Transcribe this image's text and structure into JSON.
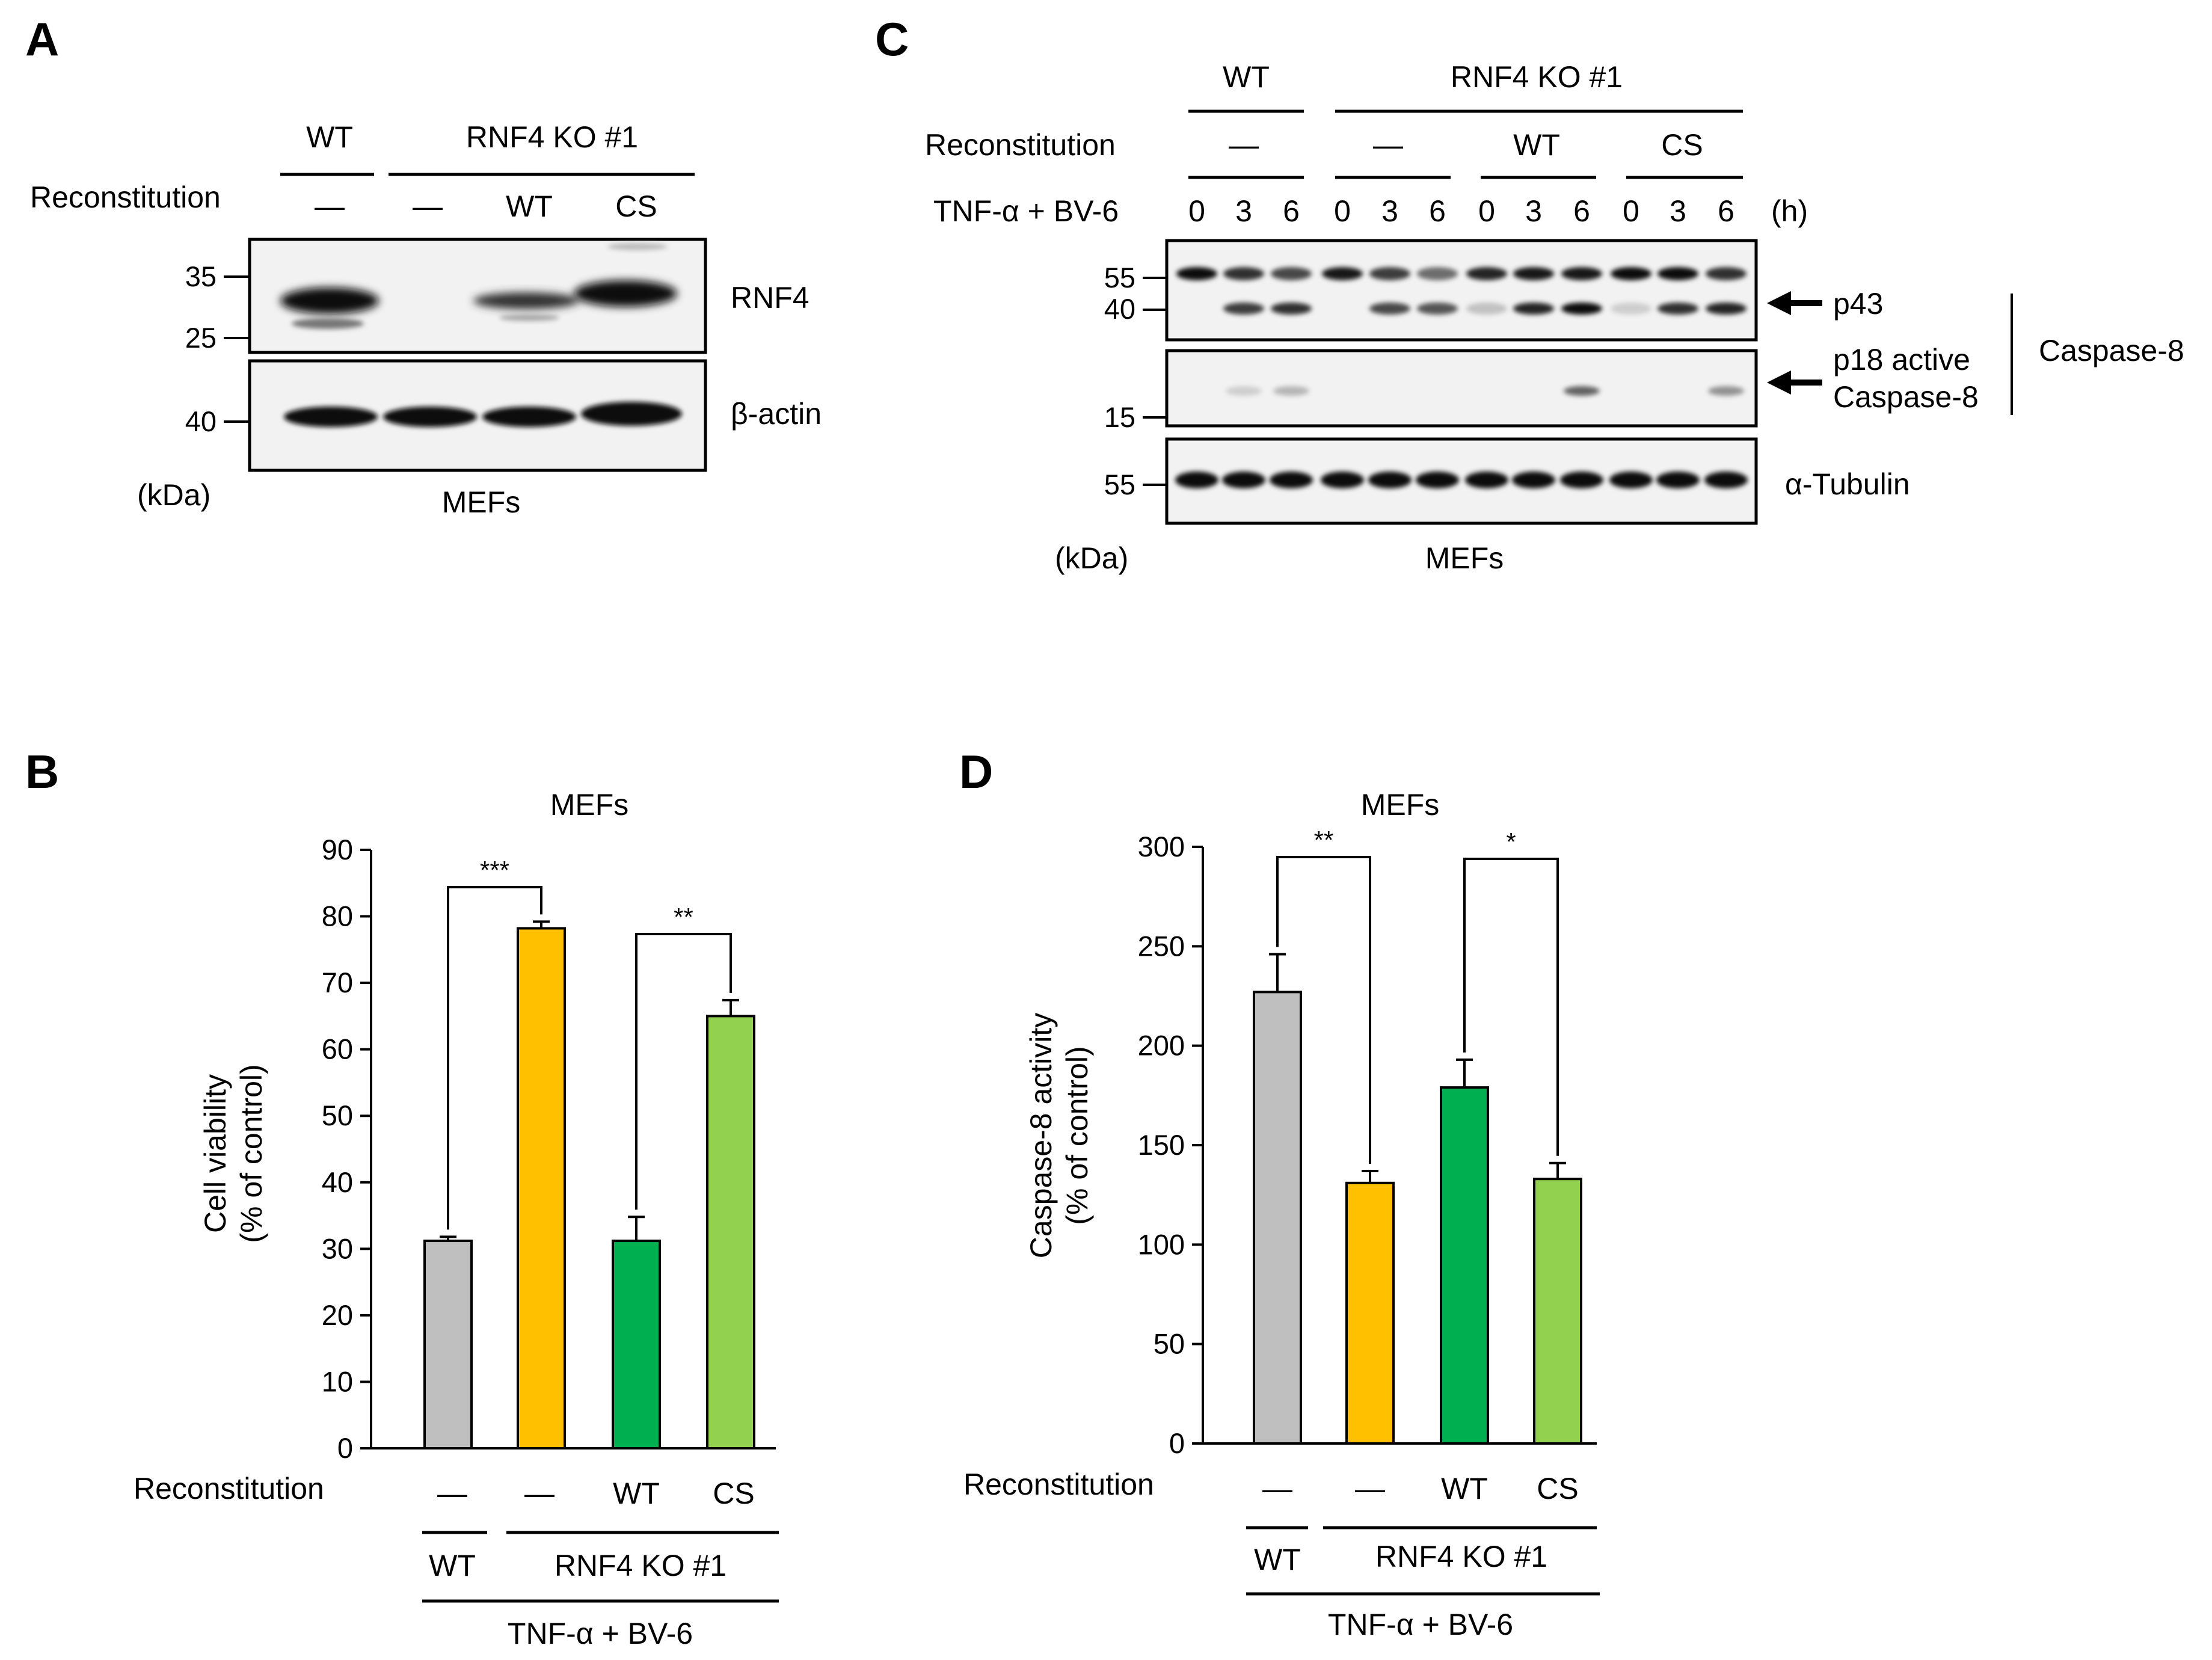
{
  "panels": {
    "A": {
      "letter": "A",
      "header_wt": "WT",
      "header_ko": "RNF4 KO #1",
      "reconstitution_label": "Reconstitution",
      "lanes": [
        "—",
        "—",
        "WT",
        "CS"
      ],
      "markers_top": [
        "35",
        "25"
      ],
      "markers_bottom": [
        "40"
      ],
      "protein_top": "RNF4",
      "protein_bottom": "β-actin",
      "kda": "(kDa)",
      "cell": "MEFs"
    },
    "C": {
      "letter": "C",
      "header_wt": "WT",
      "header_ko": "RNF4 KO #1",
      "reconstitution_label": "Reconstitution",
      "groups": [
        "—",
        "—",
        "WT",
        "CS"
      ],
      "treatment_label": "TNF-α + BV-6",
      "timepoints": [
        "0",
        "3",
        "6",
        "0",
        "3",
        "6",
        "0",
        "3",
        "6",
        "0",
        "3",
        "6"
      ],
      "time_unit": "(h)",
      "markers_top": [
        "55",
        "40"
      ],
      "markers_mid": [
        "15"
      ],
      "markers_bottom": [
        "55"
      ],
      "p43": "p43",
      "p18_line1": "p18 active",
      "p18_line2": "Caspase-8",
      "caspase_bracket": "Caspase-8",
      "tubulin": "α-Tubulin",
      "kda": "(kDa)",
      "cell": "MEFs"
    },
    "B": {
      "letter": "B",
      "reconstitution_label": "Reconstitution",
      "lanes": [
        "—",
        "—",
        "WT",
        "CS"
      ],
      "group_wt": "WT",
      "group_ko": "RNF4 KO #1",
      "treatment": "TNF-α + BV-6",
      "sig1": "***",
      "sig2": "**"
    },
    "D": {
      "letter": "D",
      "reconstitution_label": "Reconstitution",
      "lanes": [
        "—",
        "—",
        "WT",
        "CS"
      ],
      "group_wt": "WT",
      "group_ko": "RNF4 KO #1",
      "treatment": "TNF-α + BV-6",
      "sig1": "**",
      "sig2": "*"
    }
  },
  "colors": {
    "gray": "#bfbfbf",
    "orange": "#ffc000",
    "green": "#00b050",
    "light_green": "#92d050"
  },
  "chart_data": [
    {
      "id": "B",
      "type": "bar",
      "title": "MEFs",
      "ylabel_line1": "Cell viability",
      "ylabel_line2": "(% of control)",
      "ylim": [
        0,
        90
      ],
      "yticks": [
        0,
        10,
        20,
        30,
        40,
        50,
        60,
        70,
        80,
        90
      ],
      "categories": [
        "—",
        "—",
        "WT",
        "CS"
      ],
      "values": [
        31.2,
        78.2,
        31.2,
        65.0
      ],
      "errors": [
        0.6,
        1.0,
        3.6,
        2.4
      ]
    },
    {
      "id": "D",
      "type": "bar",
      "title": "MEFs",
      "ylabel_line1": "Caspase-8 activity",
      "ylabel_line2": "(% of control)",
      "ylim": [
        0,
        300
      ],
      "yticks": [
        0,
        50,
        100,
        150,
        200,
        250,
        300
      ],
      "categories": [
        "—",
        "—",
        "WT",
        "CS"
      ],
      "values": [
        227,
        131,
        179,
        133
      ],
      "errors": [
        19,
        6,
        14,
        8
      ]
    }
  ]
}
